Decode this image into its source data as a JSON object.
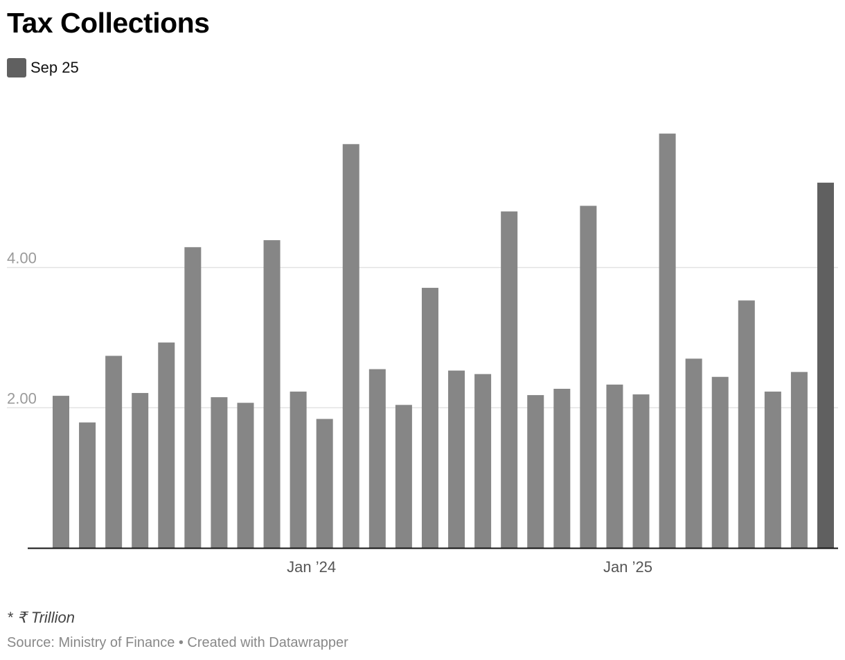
{
  "chart_data": {
    "type": "bar",
    "title": "Tax Collections",
    "legend": [
      {
        "label": "Sep 25",
        "color": "#606060"
      }
    ],
    "x": [
      "2023-04",
      "2023-05",
      "2023-06",
      "2023-07",
      "2023-08",
      "2023-09",
      "2023-10",
      "2023-11",
      "2023-12",
      "2024-01",
      "2024-02",
      "2024-03",
      "2024-04",
      "2024-05",
      "2024-06",
      "2024-07",
      "2024-08",
      "2024-09",
      "2024-10",
      "2024-11",
      "2024-12",
      "2025-01",
      "2025-02",
      "2025-03",
      "2025-04",
      "2025-05",
      "2025-06",
      "2025-07",
      "2025-08",
      "2025-09"
    ],
    "values": [
      2.17,
      1.79,
      2.74,
      2.21,
      2.93,
      4.29,
      2.15,
      2.07,
      4.39,
      2.23,
      1.84,
      5.76,
      2.55,
      2.04,
      3.71,
      2.53,
      2.48,
      4.8,
      2.18,
      2.27,
      4.88,
      2.33,
      2.19,
      5.91,
      2.7,
      2.44,
      3.53,
      2.23,
      2.51,
      5.21
    ],
    "bar_color": "#868686",
    "highlight_index": 29,
    "highlight_color": "#606060",
    "ylim": [
      0,
      6.0
    ],
    "y_ticks": [
      {
        "value": 2,
        "label": "2.00"
      },
      {
        "value": 4,
        "label": "4.00"
      }
    ],
    "x_ticks": [
      {
        "index": 9,
        "label": "Jan ’24"
      },
      {
        "index": 21,
        "label": "Jan ’25"
      }
    ],
    "grid": true
  },
  "footer": {
    "note": "* ₹ Trillion",
    "source": "Source: Ministry of Finance • Created with Datawrapper"
  }
}
